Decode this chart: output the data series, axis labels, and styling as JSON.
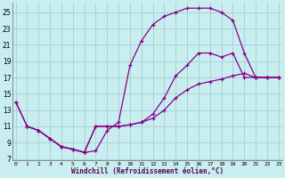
{
  "xlabel": "Windchill (Refroidissement éolien,°C)",
  "bg_color": "#c8eef0",
  "grid_color": "#a8ccd4",
  "line_color": "#880088",
  "xlim": [
    -0.3,
    23.3
  ],
  "ylim": [
    6.8,
    26.2
  ],
  "yticks": [
    7,
    9,
    11,
    13,
    15,
    17,
    19,
    21,
    23,
    25
  ],
  "xticks": [
    0,
    1,
    2,
    3,
    4,
    5,
    6,
    7,
    8,
    9,
    10,
    11,
    12,
    13,
    14,
    15,
    16,
    17,
    18,
    19,
    20,
    21,
    22,
    23
  ],
  "curve1_x": [
    0,
    1,
    2,
    3,
    4,
    5,
    6,
    7,
    8,
    9,
    10,
    11,
    12,
    13,
    14,
    15,
    16,
    17,
    18,
    19,
    20,
    21,
    22,
    23
  ],
  "curve1_y": [
    14,
    11,
    10.5,
    9.5,
    8.5,
    8.2,
    7.8,
    8.0,
    10.5,
    11.5,
    18.5,
    21.5,
    23.5,
    24.5,
    25.0,
    25.5,
    25.5,
    25.5,
    25.0,
    24.0,
    20.0,
    17.0,
    17.0,
    17.0
  ],
  "curve2_x": [
    0,
    1,
    2,
    3,
    4,
    5,
    6,
    7,
    8,
    9,
    10,
    11,
    12,
    13,
    14,
    15,
    16,
    17,
    18,
    19,
    20,
    21,
    22,
    23
  ],
  "curve2_y": [
    14,
    11,
    10.5,
    9.5,
    8.5,
    8.2,
    7.8,
    11.0,
    11.0,
    11.0,
    11.2,
    11.5,
    12.5,
    14.5,
    17.2,
    18.5,
    20.0,
    20.0,
    19.5,
    20.0,
    17.0,
    17.0,
    17.0,
    17.0
  ],
  "curve3_x": [
    1,
    2,
    3,
    4,
    5,
    6,
    7,
    8,
    9,
    10,
    11,
    12,
    13,
    14,
    15,
    16,
    17,
    18,
    19,
    20,
    21,
    22,
    23
  ],
  "curve3_y": [
    11,
    10.5,
    9.5,
    8.5,
    8.2,
    7.8,
    11.0,
    11.0,
    11.0,
    11.2,
    11.5,
    12.0,
    13.0,
    14.5,
    15.5,
    16.2,
    16.5,
    16.8,
    17.2,
    17.5,
    17.0,
    17.0,
    17.0
  ]
}
